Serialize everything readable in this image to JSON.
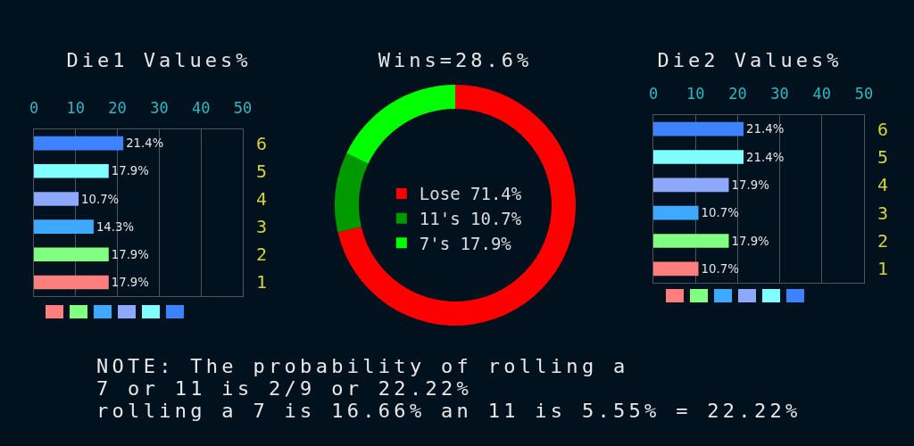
{
  "chart_data": [
    {
      "type": "bar",
      "orientation": "horizontal",
      "title": "Die1 Values%",
      "categories": [
        "6",
        "5",
        "4",
        "3",
        "2",
        "1"
      ],
      "values": [
        21.4,
        17.9,
        10.7,
        14.3,
        17.9,
        17.9
      ],
      "colors": [
        "#3d82ff",
        "#7fffff",
        "#8da9ff",
        "#3fa9ff",
        "#80ff80",
        "#ff7f7f"
      ],
      "value_labels": [
        "21.4%",
        "17.9%",
        "10.7%",
        "14.3%",
        "17.9%",
        "17.9%"
      ],
      "xlim": [
        0,
        50
      ],
      "xticks": [
        0,
        10,
        20,
        30,
        40,
        50
      ],
      "grid": "x"
    },
    {
      "type": "donut",
      "title": "Wins=28.6%",
      "categories": [
        "Lose",
        "11's",
        "7's"
      ],
      "values": [
        71.4,
        10.7,
        17.9
      ],
      "colors": [
        "#ff0000",
        "#009a00",
        "#00ff00"
      ],
      "value_labels": [
        "71.4%",
        "10.7%",
        "17.9%"
      ],
      "legend": "center",
      "annotations": [
        "NOTE: The probability of rolling a",
        "7 or 11 is 2/9 or 22.22%",
        "rolling a 7 is 16.66% an 11 is 5.55% = 22.22%"
      ]
    },
    {
      "type": "bar",
      "orientation": "horizontal",
      "title": "Die2 Values%",
      "categories": [
        "6",
        "5",
        "4",
        "3",
        "2",
        "1"
      ],
      "values": [
        21.4,
        21.4,
        17.9,
        10.7,
        17.9,
        10.7
      ],
      "colors": [
        "#3d82ff",
        "#7fffff",
        "#8da9ff",
        "#3fa9ff",
        "#80ff80",
        "#ff7f7f"
      ],
      "value_labels": [
        "21.4%",
        "21.4%",
        "17.9%",
        "10.7%",
        "17.9%",
        "10.7%"
      ],
      "xlim": [
        0,
        50
      ],
      "xticks": [
        0,
        10,
        20,
        30,
        40,
        50
      ],
      "grid": "x"
    }
  ]
}
